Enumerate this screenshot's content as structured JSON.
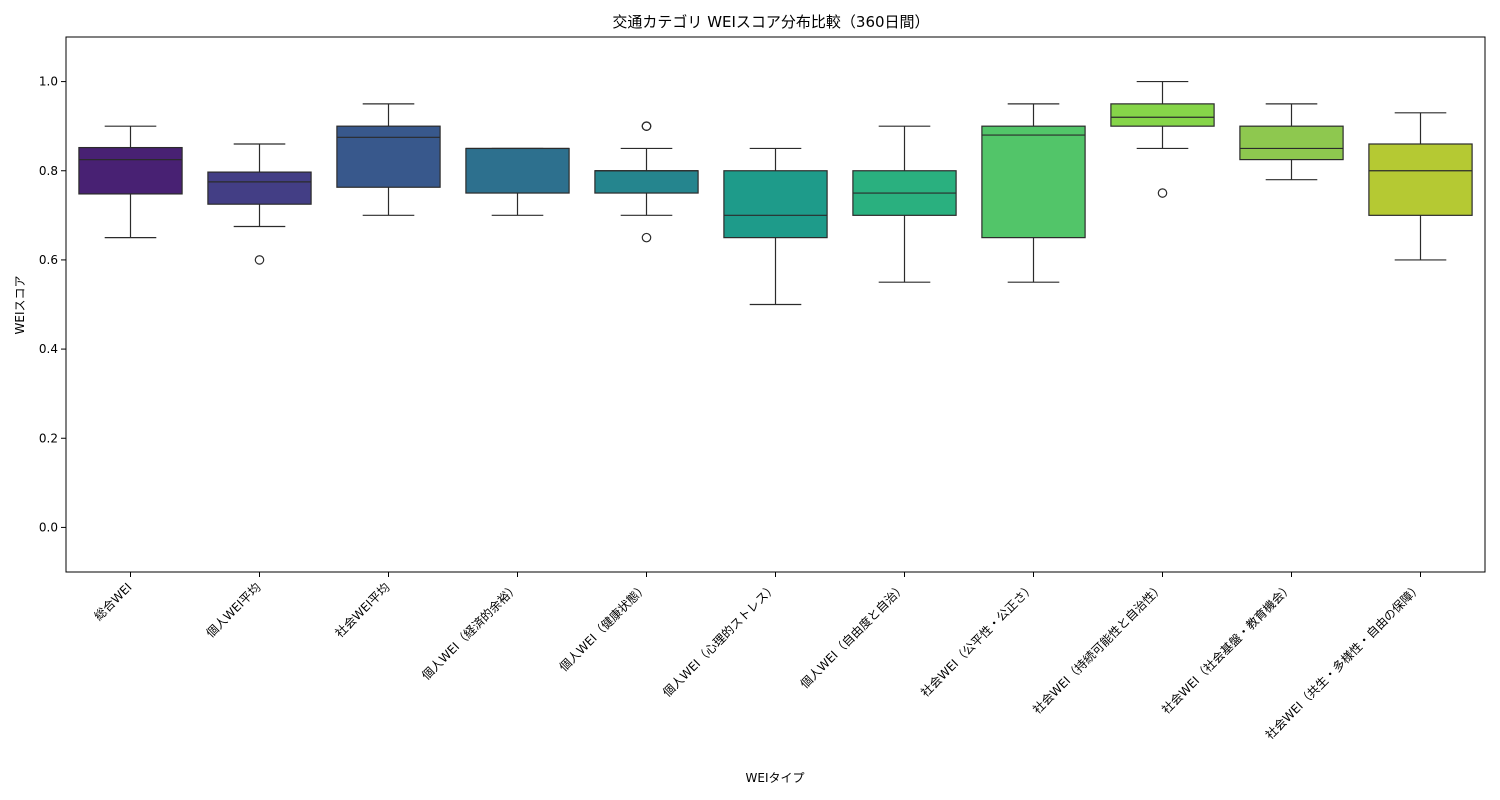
{
  "chart_data": {
    "type": "box",
    "title": "交通カテゴリ WEIスコア分布比較（360日間）",
    "xlabel": "WEIタイプ",
    "ylabel": "WEIスコア",
    "ylim": [
      -0.1,
      1.1
    ],
    "yticks": [
      0.0,
      0.2,
      0.4,
      0.6,
      0.8,
      1.0
    ],
    "ytick_labels": [
      "0.0",
      "0.2",
      "0.4",
      "0.6",
      "0.8",
      "1.0"
    ],
    "grid": false,
    "categories": [
      "総合WEI",
      "個人WEI平均",
      "社会WEI平均",
      "個人WEI（経済的余裕）",
      "個人WEI（健康状態）",
      "個人WEI（心理的ストレス）",
      "個人WEI（自由度と自治）",
      "社会WEI（公平性・公正さ）",
      "社会WEI（持続可能性と自治性）",
      "社会WEI（社会基盤・教育機会）",
      "社会WEI（共生・多様性・自由の保障）"
    ],
    "boxes": [
      {
        "whislo": 0.65,
        "q1": 0.748,
        "med": 0.825,
        "q3": 0.852,
        "whishi": 0.9,
        "fliers": [],
        "color": "#482173"
      },
      {
        "whislo": 0.675,
        "q1": 0.725,
        "med": 0.775,
        "q3": 0.797,
        "whishi": 0.86,
        "fliers": [
          0.6
        ],
        "color": "#433e85"
      },
      {
        "whislo": 0.7,
        "q1": 0.763,
        "med": 0.875,
        "q3": 0.9,
        "whishi": 0.95,
        "fliers": [],
        "color": "#38588c"
      },
      {
        "whislo": 0.7,
        "q1": 0.75,
        "med": 0.85,
        "q3": 0.85,
        "whishi": 0.85,
        "fliers": [],
        "color": "#2d708e"
      },
      {
        "whislo": 0.7,
        "q1": 0.75,
        "med": 0.8,
        "q3": 0.8,
        "whishi": 0.85,
        "fliers": [
          0.65,
          0.9,
          0.9
        ],
        "color": "#25858e"
      },
      {
        "whislo": 0.5,
        "q1": 0.65,
        "med": 0.7,
        "q3": 0.8,
        "whishi": 0.85,
        "fliers": [],
        "color": "#1e9b8a"
      },
      {
        "whislo": 0.55,
        "q1": 0.7,
        "med": 0.75,
        "q3": 0.8,
        "whishi": 0.9,
        "fliers": [],
        "color": "#2ab07f"
      },
      {
        "whislo": 0.55,
        "q1": 0.65,
        "med": 0.88,
        "q3": 0.9,
        "whishi": 0.95,
        "fliers": [],
        "color": "#52c569"
      },
      {
        "whislo": 0.85,
        "q1": 0.9,
        "med": 0.92,
        "q3": 0.95,
        "whishi": 1.0,
        "fliers": [
          0.75
        ],
        "color": "#86d549"
      },
      {
        "whislo": 0.78,
        "q1": 0.825,
        "med": 0.85,
        "q3": 0.9,
        "whishi": 0.95,
        "fliers": [],
        "color": "#8ec84f"
      },
      {
        "whislo": 0.6,
        "q1": 0.7,
        "med": 0.8,
        "q3": 0.86,
        "whishi": 0.93,
        "fliers": [],
        "color": "#b5c933"
      }
    ]
  }
}
